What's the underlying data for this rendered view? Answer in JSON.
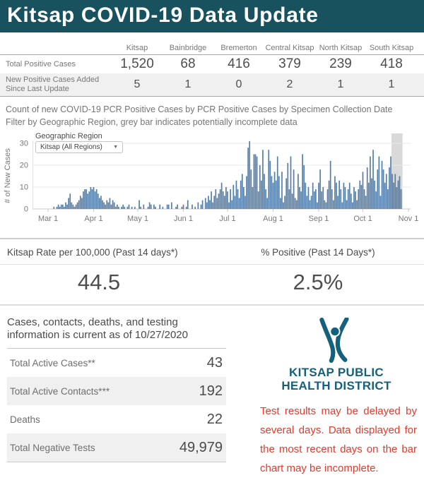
{
  "header": {
    "title": "Kitsap COVID-19 Data Update",
    "bg_color": "#18525f"
  },
  "summary_table": {
    "columns": [
      "Kitsap",
      "Bainbridge",
      "Bremerton",
      "Central Kitsap",
      "North Kitsap",
      "South Kitsap"
    ],
    "rows": [
      {
        "label": "Total Positive Cases",
        "values": [
          "1,520",
          "68",
          "416",
          "379",
          "239",
          "418"
        ]
      },
      {
        "label": "New Positive Cases Added Since Last Update",
        "values": [
          "5",
          "1",
          "0",
          "2",
          "1",
          "1"
        ]
      }
    ]
  },
  "chart_section": {
    "title_line1": "Count of new COVID-19 PCR Positive Cases by PCR Positive Cases by Specimen Collection Date",
    "title_line2": "Filter by Geographic Region, grey bar indicates potentially incomplete data",
    "filter_label": "Geographic Region",
    "filter_value": "Kitsap (All Regions)"
  },
  "chart_data": {
    "type": "bar",
    "title": "Count of new COVID-19 PCR Positive Cases by Specimen Collection Date",
    "xlabel": "",
    "ylabel": "# of New Cases",
    "x_ticks": [
      "Mar 1",
      "Apr 1",
      "May 1",
      "Jun 1",
      "Jul 1",
      "Aug 1",
      "Sep 1",
      "Oct 1",
      "Nov 1"
    ],
    "tick_day_offsets": [
      0,
      31,
      61,
      92,
      122,
      153,
      184,
      214,
      245
    ],
    "x_domain_days": 245,
    "ylim": [
      0,
      30
    ],
    "y_ticks": [
      0,
      10,
      20,
      30
    ],
    "bar_color": "#557fa9",
    "incomplete_color": "#d9d9d9",
    "incomplete_start_day": 234,
    "start_date": "Mar 1",
    "values": [
      0,
      0,
      0,
      0,
      1,
      0,
      1,
      2,
      1,
      2,
      2,
      1,
      3,
      2,
      5,
      7,
      3,
      2,
      1,
      2,
      3,
      4,
      6,
      5,
      8,
      9,
      9,
      7,
      8,
      10,
      9,
      10,
      8,
      9,
      7,
      5,
      6,
      4,
      3,
      2,
      4,
      3,
      5,
      2,
      4,
      3,
      1,
      2,
      1,
      0,
      1,
      2,
      1,
      0,
      1,
      2,
      0,
      1,
      0,
      1,
      0,
      0,
      4,
      1,
      0,
      2,
      0,
      0,
      1,
      3,
      2,
      0,
      2,
      1,
      0,
      0,
      2,
      0,
      1,
      0,
      0,
      2,
      2,
      0,
      3,
      0,
      0,
      1,
      2,
      0,
      0,
      1,
      2,
      0,
      1,
      4,
      0,
      0,
      2,
      0,
      1,
      0,
      3,
      0,
      2,
      4,
      0,
      5,
      3,
      6,
      4,
      8,
      3,
      6,
      9,
      5,
      7,
      9,
      12,
      8,
      6,
      10,
      8,
      3,
      9,
      4,
      11,
      6,
      13,
      9,
      5,
      13,
      16,
      10,
      6,
      15,
      28,
      31,
      18,
      10,
      25,
      25,
      24,
      8,
      20,
      13,
      27,
      16,
      9,
      5,
      27,
      22,
      15,
      12,
      17,
      13,
      24,
      15,
      5,
      17,
      3,
      6,
      14,
      21,
      9,
      24,
      7,
      18,
      5,
      4,
      16,
      10,
      8,
      25,
      20,
      12,
      6,
      10,
      4,
      6,
      12,
      8,
      9,
      3,
      12,
      18,
      8,
      10,
      4,
      3,
      9,
      13,
      22,
      9,
      4,
      15,
      12,
      6,
      13,
      9,
      3,
      12,
      10,
      4,
      9,
      12,
      7,
      3,
      10,
      8,
      4,
      9,
      13,
      11,
      17,
      9,
      6,
      19,
      12,
      24,
      14,
      27,
      13,
      8,
      18,
      24,
      6,
      22,
      18,
      12,
      16,
      9,
      19,
      24,
      16,
      12,
      16,
      10,
      13,
      15,
      9
    ]
  },
  "metrics": {
    "left_label": "Kitsap Rate per 100,000 (Past 14 days*)",
    "left_value": "44.5",
    "right_label": "% Positive (Past 14 Days*)",
    "right_value": "2.5%"
  },
  "stats": {
    "heading_line1": "Cases, contacts, deaths, and testing",
    "heading_line2": "information is current as of 10/27/2020",
    "rows": [
      {
        "label": "Total Active Cases**",
        "value": "43"
      },
      {
        "label": "Total Active Contacts***",
        "value": "192"
      },
      {
        "label": "Deaths",
        "value": "22"
      },
      {
        "label": "Total Negative Tests",
        "value": "49,979"
      }
    ]
  },
  "org": {
    "name_line1": "KITSAP PUBLIC",
    "name_line2": "HEALTH DISTRICT",
    "note": "Test results may be delayed by several days. Data displayed for the most recent days on the bar chart may be incomplete.",
    "teal_color": "#15607d",
    "red_color": "#e8382c"
  }
}
